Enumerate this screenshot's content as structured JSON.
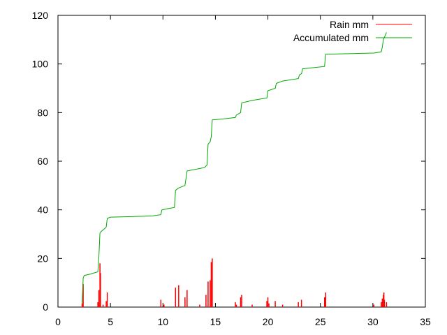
{
  "chart_data": {
    "type": "line",
    "xlim": [
      0,
      35
    ],
    "ylim": [
      0,
      120
    ],
    "x_ticks": [
      0,
      5,
      10,
      15,
      20,
      25,
      30,
      35
    ],
    "y_ticks": [
      0,
      20,
      40,
      60,
      80,
      100,
      120
    ],
    "grid": false,
    "legend_position": "top-right",
    "series": [
      {
        "name": "Rain mm",
        "style": "impulses",
        "color": "#ff0000",
        "points": [
          [
            2.3,
            1.5
          ],
          [
            2.4,
            9.5
          ],
          [
            3.8,
            2.0
          ],
          [
            3.9,
            7.0
          ],
          [
            4.0,
            18.0
          ],
          [
            4.05,
            14.0
          ],
          [
            4.3,
            1.0
          ],
          [
            4.6,
            2.5
          ],
          [
            4.7,
            6.0
          ],
          [
            9.8,
            3.0
          ],
          [
            10.1,
            1.0
          ],
          [
            11.2,
            8.0
          ],
          [
            11.5,
            9.0
          ],
          [
            12.1,
            4.0
          ],
          [
            12.3,
            7.0
          ],
          [
            13.5,
            1.0
          ],
          [
            14.1,
            5.0
          ],
          [
            14.3,
            10.5
          ],
          [
            14.5,
            11.0
          ],
          [
            14.6,
            18.5
          ],
          [
            14.7,
            20.0
          ],
          [
            16.9,
            2.0
          ],
          [
            17.0,
            1.0
          ],
          [
            17.4,
            4.0
          ],
          [
            17.5,
            5.0
          ],
          [
            18.5,
            1.0
          ],
          [
            19.9,
            2.5
          ],
          [
            20.0,
            4.0
          ],
          [
            20.1,
            1.5
          ],
          [
            20.7,
            2.5
          ],
          [
            21.4,
            1.0
          ],
          [
            22.9,
            2.0
          ],
          [
            23.2,
            3.0
          ],
          [
            25.4,
            4.0
          ],
          [
            25.5,
            6.0
          ],
          [
            30.1,
            1.0
          ],
          [
            30.8,
            2.0
          ],
          [
            30.9,
            3.5
          ],
          [
            31.0,
            5.0
          ],
          [
            31.05,
            6.0
          ],
          [
            31.1,
            3.0
          ],
          [
            31.3,
            2.0
          ]
        ]
      },
      {
        "name": "Accumulated mm",
        "style": "line",
        "color": "#00aa00",
        "points": [
          [
            2.3,
            1.5
          ],
          [
            2.4,
            12.0
          ],
          [
            2.5,
            13.0
          ],
          [
            3.0,
            13.5
          ],
          [
            3.8,
            14.5
          ],
          [
            3.9,
            21.0
          ],
          [
            4.0,
            30.5
          ],
          [
            4.1,
            31.0
          ],
          [
            4.5,
            32.5
          ],
          [
            4.6,
            33.0
          ],
          [
            4.7,
            36.5
          ],
          [
            5.0,
            37.0
          ],
          [
            7.0,
            37.2
          ],
          [
            9.0,
            37.5
          ],
          [
            9.8,
            38.0
          ],
          [
            9.9,
            40.0
          ],
          [
            10.5,
            40.5
          ],
          [
            11.1,
            41.0
          ],
          [
            11.2,
            48.0
          ],
          [
            11.5,
            49.0
          ],
          [
            12.1,
            50.0
          ],
          [
            12.3,
            56.0
          ],
          [
            13.5,
            57.0
          ],
          [
            14.0,
            57.5
          ],
          [
            14.2,
            58.5
          ],
          [
            14.3,
            67.0
          ],
          [
            14.5,
            68.0
          ],
          [
            14.6,
            70.0
          ],
          [
            14.7,
            77.0
          ],
          [
            16.0,
            77.5
          ],
          [
            16.9,
            78.0
          ],
          [
            17.0,
            79.0
          ],
          [
            17.4,
            80.0
          ],
          [
            17.5,
            84.0
          ],
          [
            18.5,
            85.0
          ],
          [
            19.9,
            86.0
          ],
          [
            20.0,
            89.0
          ],
          [
            20.7,
            90.0
          ],
          [
            20.8,
            92.0
          ],
          [
            21.4,
            93.0
          ],
          [
            22.9,
            94.0
          ],
          [
            23.0,
            95.5
          ],
          [
            23.2,
            96.0
          ],
          [
            23.3,
            98.0
          ],
          [
            25.4,
            99.0
          ],
          [
            25.5,
            104.0
          ],
          [
            30.1,
            104.5
          ],
          [
            30.8,
            105.0
          ],
          [
            30.9,
            107.0
          ],
          [
            31.0,
            110.0
          ],
          [
            31.3,
            113.0
          ]
        ]
      }
    ]
  }
}
